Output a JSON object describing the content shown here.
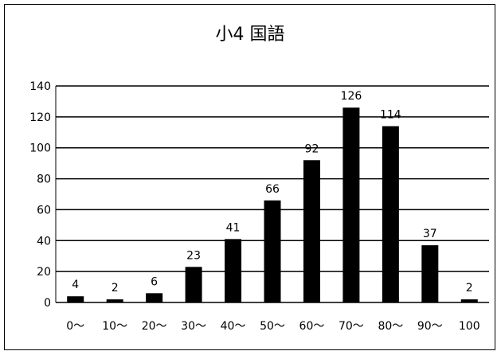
{
  "chart_data": {
    "type": "bar",
    "title": "小4 国語",
    "categories": [
      "0〜",
      "10〜",
      "20〜",
      "30〜",
      "40〜",
      "50〜",
      "60〜",
      "70〜",
      "80〜",
      "90〜",
      "100"
    ],
    "values": [
      4,
      2,
      6,
      23,
      41,
      66,
      92,
      126,
      114,
      37,
      2
    ],
    "y_ticks": [
      "0",
      "20",
      "40",
      "60",
      "80",
      "100",
      "120",
      "140"
    ],
    "ylim": [
      0,
      140
    ],
    "grid": true,
    "legend": "none",
    "bar_color": "#000000",
    "gridline_color": "#000000",
    "background_color": "#ffffff"
  }
}
